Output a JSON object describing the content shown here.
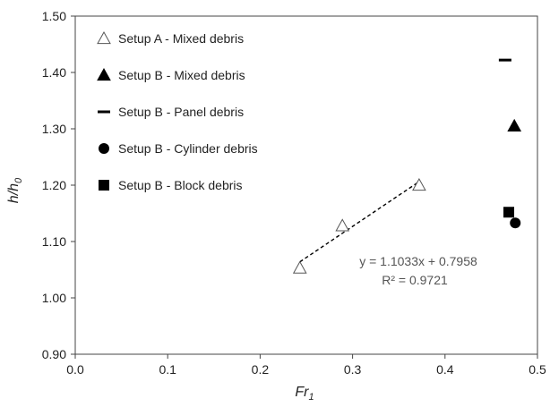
{
  "chart_data": {
    "type": "scatter",
    "title": "",
    "xlabel": "Fr",
    "xlabel_sub": "1",
    "ylabel": "h/h",
    "ylabel_sub": "0",
    "xlim": [
      0.0,
      0.5
    ],
    "ylim": [
      0.9,
      1.5
    ],
    "xticks": [
      0.0,
      0.1,
      0.2,
      0.3,
      0.4,
      0.5
    ],
    "yticks": [
      0.9,
      1.0,
      1.1,
      1.2,
      1.3,
      1.4,
      1.5
    ],
    "xtick_labels": [
      "0.0",
      "0.1",
      "0.2",
      "0.3",
      "0.4",
      "0.5"
    ],
    "ytick_labels": [
      "0.90",
      "1.00",
      "1.10",
      "1.20",
      "1.30",
      "1.40",
      "1.50"
    ],
    "grid": false,
    "legend_position": "top-left",
    "series": [
      {
        "name": "Setup A - Mixed debris",
        "marker": "triangle-open",
        "color": "#000000",
        "x": [
          0.243,
          0.289,
          0.372
        ],
        "y": [
          1.053,
          1.128,
          1.2
        ]
      },
      {
        "name": "Setup B - Mixed debris",
        "marker": "triangle-filled",
        "color": "#000000",
        "x": [
          0.475
        ],
        "y": [
          1.305
        ]
      },
      {
        "name": "Setup B - Panel debris",
        "marker": "dash",
        "color": "#000000",
        "x": [
          0.465
        ],
        "y": [
          1.422
        ]
      },
      {
        "name": "Setup B - Cylinder debris",
        "marker": "circle-filled",
        "color": "#000000",
        "x": [
          0.476
        ],
        "y": [
          1.133
        ]
      },
      {
        "name": "Setup B - Block debris",
        "marker": "square-filled",
        "color": "#000000",
        "x": [
          0.469
        ],
        "y": [
          1.152
        ]
      }
    ],
    "trendline": {
      "slope": 1.1033,
      "intercept": 0.7958,
      "x_range": [
        0.243,
        0.372
      ],
      "style": "dashed",
      "color": "#000000"
    },
    "annotations": {
      "equation": "y = 1.1033x + 0.7958",
      "r_squared": "R² = 0.9721"
    }
  }
}
